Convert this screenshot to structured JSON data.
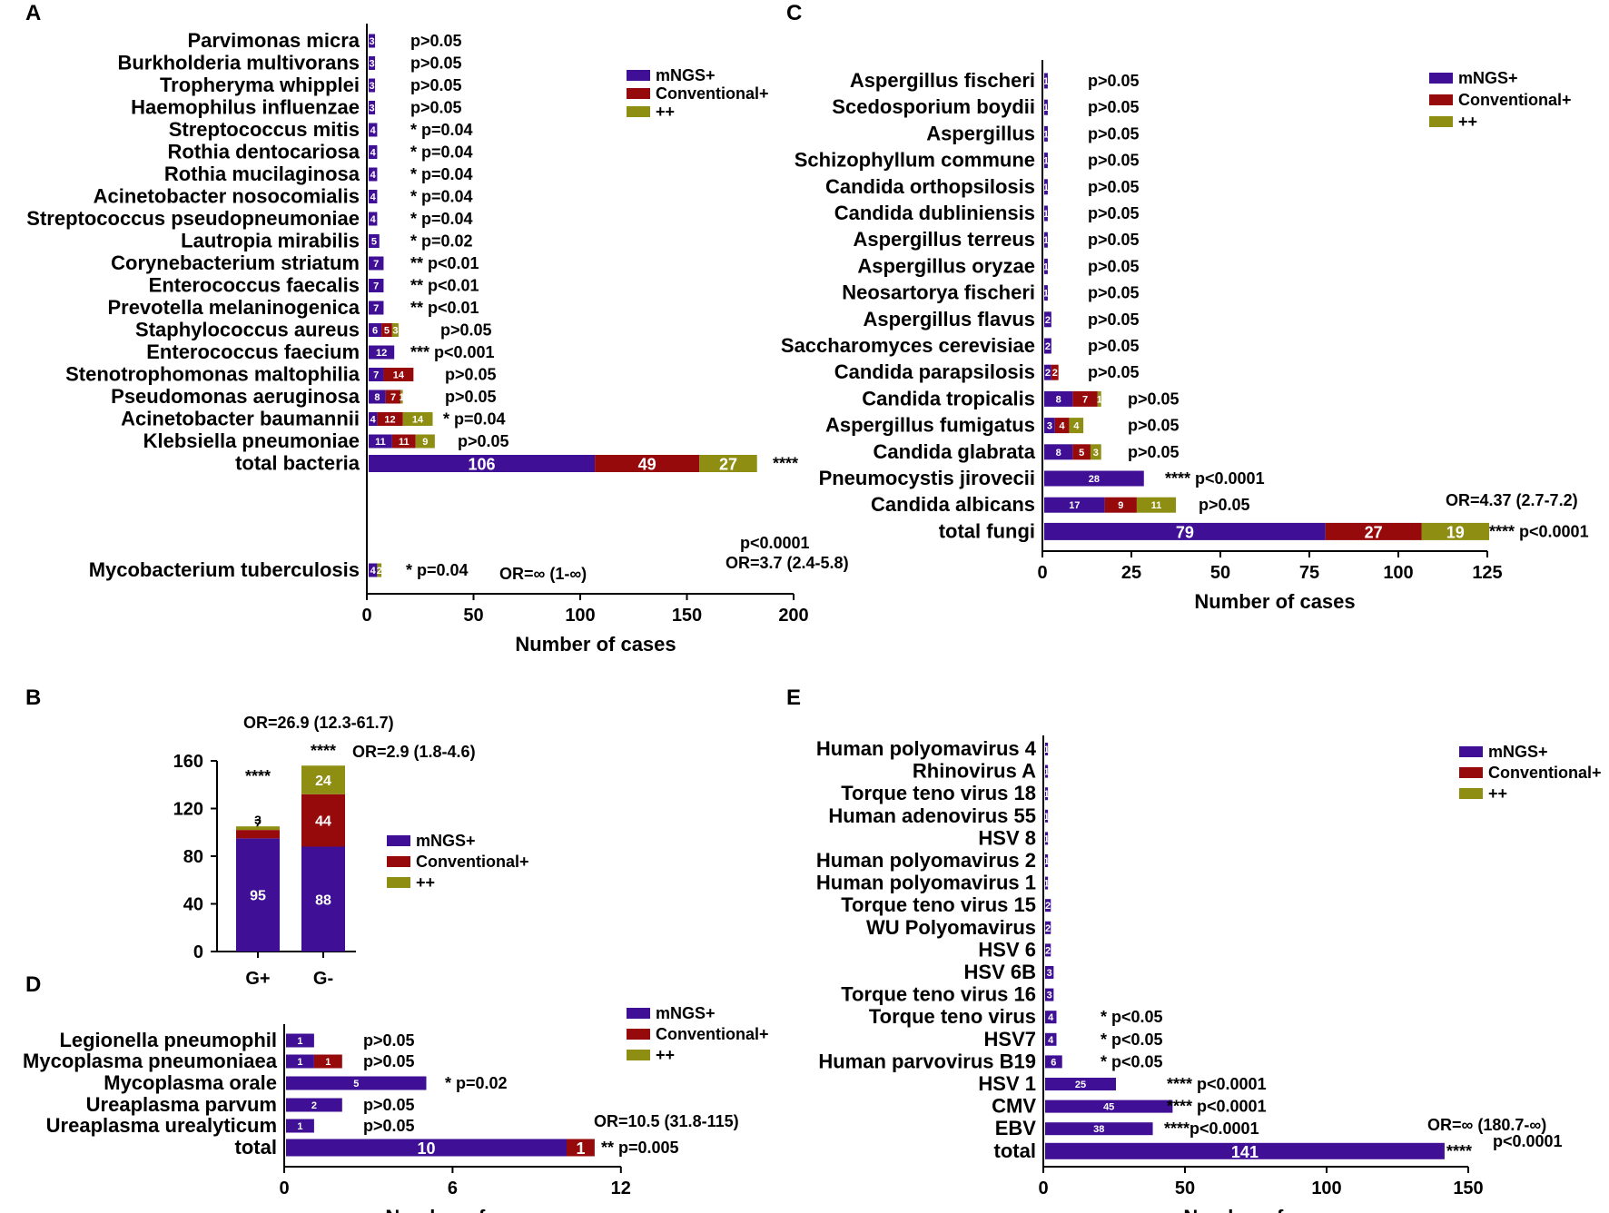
{
  "colors": {
    "mngs": "#3f0f95",
    "conv": "#970a0c",
    "both": "#8e8e12"
  },
  "legend": [
    "mNGS+",
    "Conventional+",
    "++"
  ],
  "chart_data": [
    {
      "panel": "A",
      "type": "bar",
      "orientation": "horizontal",
      "stacked": true,
      "xlabel": "Number of cases",
      "xlim": [
        0,
        200
      ],
      "xticks": [
        "0",
        "50",
        "100",
        "150",
        "200"
      ],
      "categories": [
        "Parvimonas micra",
        "Burkholderia multivorans",
        "Tropheryma whipplei",
        "Haemophilus influenzae",
        "Streptococcus mitis",
        "Rothia dentocariosa",
        "Rothia mucilaginosa",
        "Acinetobacter nosocomialis",
        "Streptococcus pseudopneumoniae",
        "Lautropia mirabilis",
        "Corynebacterium striatum",
        "Enterococcus faecalis",
        "Prevotella melaninogenica",
        "Staphylococcus aureus",
        "Enterococcus faecium",
        "Stenotrophomonas maltophilia",
        "Pseudomonas aeruginosa",
        "Acinetobacter baumannii",
        "Klebsiella pneumoniae",
        "total bacteria",
        "Mycobacterium tuberculosis"
      ],
      "series": [
        {
          "name": "mNGS+",
          "values": [
            3,
            3,
            3,
            3,
            4,
            4,
            4,
            4,
            4,
            5,
            7,
            7,
            7,
            6,
            12,
            7,
            8,
            4,
            11,
            106,
            4
          ]
        },
        {
          "name": "Conventional+",
          "values": [
            0,
            0,
            0,
            0,
            0,
            0,
            0,
            0,
            0,
            0,
            0,
            0,
            0,
            5,
            0,
            14,
            7,
            12,
            11,
            49,
            0
          ]
        },
        {
          "name": "++",
          "values": [
            0,
            0,
            0,
            0,
            0,
            0,
            0,
            0,
            0,
            0,
            0,
            0,
            0,
            3,
            0,
            0,
            1,
            14,
            9,
            27,
            2
          ]
        }
      ],
      "annotations": [
        "p>0.05",
        "p>0.05",
        "p>0.05",
        "p>0.05",
        "* p=0.04",
        "* p=0.04",
        "* p=0.04",
        "* p=0.04",
        "* p=0.04",
        "* p=0.02",
        "**  p<0.01",
        "**  p<0.01",
        "**  p<0.01",
        "p>0.05",
        "***  p<0.001",
        "p>0.05",
        "p>0.05",
        "* p=0.04",
        "p>0.05",
        "****",
        "* p=0.04"
      ],
      "extra_text": [
        "p<0.0001",
        "OR=3.7 (2.4-5.8)",
        "OR=∞ (1-∞)"
      ]
    },
    {
      "panel": "B",
      "type": "bar",
      "orientation": "vertical",
      "stacked": true,
      "categories": [
        "G+",
        "G-"
      ],
      "ylim": [
        0,
        160
      ],
      "yticks": [
        "0",
        "40",
        "80",
        "120",
        "160"
      ],
      "series": [
        {
          "name": "mNGS+",
          "values": [
            95,
            88
          ]
        },
        {
          "name": "Conventional+",
          "values": [
            7,
            44
          ]
        },
        {
          "name": "++",
          "values": [
            3,
            24
          ]
        }
      ],
      "annotations": [
        "****",
        "****"
      ],
      "extra_text": [
        "OR=26.9 (12.3-61.7)",
        "OR=2.9 (1.8-4.6)"
      ]
    },
    {
      "panel": "C",
      "type": "bar",
      "orientation": "horizontal",
      "stacked": true,
      "xlabel": "Number of cases",
      "xlim": [
        0,
        125
      ],
      "xticks": [
        "0",
        "25",
        "50",
        "75",
        "100",
        "125"
      ],
      "categories": [
        "Aspergillus fischeri",
        "Scedosporium boydii",
        "Aspergillus",
        "Schizophyllum commune",
        "Candida orthopsilosis",
        "Candida dubliniensis",
        "Aspergillus terreus",
        "Aspergillus oryzae",
        "Neosartorya fischeri",
        "Aspergillus flavus",
        "Saccharomyces cerevisiae",
        "Candida parapsilosis",
        "Candida tropicalis",
        "Aspergillus fumigatus",
        "Candida glabrata",
        "Pneumocystis jirovecii",
        "Candida albicans",
        "total fungi"
      ],
      "series": [
        {
          "name": "mNGS+",
          "values": [
            1,
            1,
            1,
            1,
            1,
            1,
            1,
            1,
            1,
            2,
            2,
            2,
            8,
            3,
            8,
            28,
            17,
            79
          ]
        },
        {
          "name": "Conventional+",
          "values": [
            0,
            0,
            0,
            0,
            0,
            0,
            0,
            0,
            0,
            0,
            0,
            2,
            7,
            4,
            5,
            0,
            9,
            27
          ]
        },
        {
          "name": "++",
          "values": [
            0,
            0,
            0,
            0,
            0,
            0,
            0,
            0,
            0,
            0,
            0,
            0,
            1,
            4,
            3,
            0,
            11,
            19
          ]
        }
      ],
      "annotations": [
        "p>0.05",
        "p>0.05",
        "p>0.05",
        "p>0.05",
        "p>0.05",
        "p>0.05",
        "p>0.05",
        "p>0.05",
        "p>0.05",
        "p>0.05",
        "p>0.05",
        "p>0.05",
        "p>0.05",
        "p>0.05",
        "p>0.05",
        "****  p<0.0001",
        "p>0.05",
        "****  p<0.0001"
      ],
      "extra_text": [
        "OR=4.37 (2.7-7.2)"
      ]
    },
    {
      "panel": "D",
      "type": "bar",
      "orientation": "horizontal",
      "stacked": true,
      "xlabel": "Number of cases",
      "xlim": [
        0,
        12
      ],
      "xticks": [
        "0",
        "6",
        "12"
      ],
      "categories": [
        "Legionella pneumophil",
        "Mycoplasma pneumoniaea",
        "Mycoplasma orale",
        "Ureaplasma parvum",
        "Ureaplasma urealyticum",
        "total"
      ],
      "series": [
        {
          "name": "mNGS+",
          "values": [
            1,
            1,
            5,
            2,
            1,
            10
          ]
        },
        {
          "name": "Conventional+",
          "values": [
            0,
            1,
            0,
            0,
            0,
            1
          ]
        },
        {
          "name": "++",
          "values": [
            0,
            0,
            0,
            0,
            0,
            0
          ]
        }
      ],
      "annotations": [
        "p>0.05",
        "p>0.05",
        "* p=0.02",
        "p>0.05",
        "p>0.05",
        "** p=0.005"
      ],
      "extra_text": [
        "OR=10.5 (31.8-115)"
      ]
    },
    {
      "panel": "E",
      "type": "bar",
      "orientation": "horizontal",
      "stacked": true,
      "xlabel": "Number of cases",
      "xlim": [
        0,
        150
      ],
      "xticks": [
        "0",
        "50",
        "100",
        "150"
      ],
      "categories": [
        "Human polyomavirus 4",
        "Rhinovirus A",
        "Torque teno virus 18",
        "Human adenovirus 55",
        "HSV 8",
        "Human polyomavirus 2",
        "Human polyomavirus 1",
        "Torque teno virus 15",
        "WU Polyomavirus",
        "HSV 6",
        "HSV 6B",
        "Torque teno virus 16",
        "Torque teno virus",
        "HSV7",
        "Human parvovirus B19",
        "HSV 1",
        "CMV",
        "EBV",
        "total"
      ],
      "series": [
        {
          "name": "mNGS+",
          "values": [
            1,
            1,
            1,
            1,
            1,
            1,
            1,
            2,
            2,
            2,
            3,
            3,
            4,
            4,
            6,
            25,
            45,
            38,
            141
          ]
        },
        {
          "name": "Conventional+",
          "values": [
            0,
            0,
            0,
            0,
            0,
            0,
            0,
            0,
            0,
            0,
            0,
            0,
            0,
            0,
            0,
            0,
            0,
            0,
            0
          ]
        },
        {
          "name": "++",
          "values": [
            0,
            0,
            0,
            0,
            0,
            0,
            0,
            0,
            0,
            0,
            0,
            0,
            0,
            0,
            0,
            0,
            0,
            0,
            0
          ]
        }
      ],
      "annotations": [
        "",
        "",
        "",
        "",
        "",
        "",
        "",
        "",
        "",
        "",
        "",
        "",
        "*  p<0.05",
        "*  p<0.05",
        "*  p<0.05",
        "****  p<0.0001",
        "****  p<0.0001",
        "****p<0.0001",
        "****"
      ],
      "extra_text": [
        "OR=∞ (180.7-∞)",
        "p<0.0001"
      ]
    }
  ]
}
